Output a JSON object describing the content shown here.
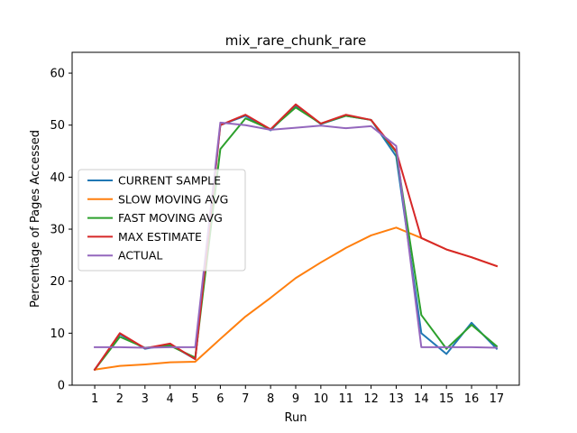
{
  "chart_data": {
    "type": "line",
    "title": "mix_rare_chunk_rare",
    "xlabel": "Run",
    "ylabel": "Percentage of Pages Accessed",
    "x": [
      1,
      2,
      3,
      4,
      5,
      6,
      7,
      8,
      9,
      10,
      11,
      12,
      13,
      14,
      15,
      16,
      17
    ],
    "xlim": [
      0.1,
      17.9
    ],
    "ylim": [
      0,
      64
    ],
    "yticks": [
      0,
      10,
      20,
      30,
      40,
      50,
      60
    ],
    "grid": false,
    "legend_position": "center-left",
    "series": [
      {
        "name": "CURRENT SAMPLE",
        "color": "#1f77b4",
        "values": [
          3.0,
          9.8,
          7.0,
          7.8,
          5.0,
          50.0,
          51.8,
          49.0,
          53.8,
          50.2,
          51.8,
          51.0,
          44.0,
          10.0,
          6.0,
          12.0,
          7.0
        ]
      },
      {
        "name": "SLOW MOVING AVG",
        "color": "#ff7f0e",
        "values": [
          3.0,
          3.7,
          4.0,
          4.4,
          4.5,
          8.9,
          13.2,
          16.8,
          20.6,
          23.6,
          26.4,
          28.8,
          30.3,
          28.3,
          26.1,
          24.6,
          22.9
        ]
      },
      {
        "name": "FAST MOVING AVG",
        "color": "#2ca02c",
        "values": [
          3.0,
          9.3,
          7.2,
          7.6,
          5.3,
          45.4,
          51.3,
          49.2,
          53.4,
          50.3,
          51.8,
          51.0,
          44.8,
          13.5,
          7.0,
          11.6,
          7.5
        ]
      },
      {
        "name": "MAX ESTIMATE",
        "color": "#d62728",
        "values": [
          3.0,
          10.0,
          7.1,
          8.0,
          5.0,
          50.0,
          52.0,
          49.2,
          54.0,
          50.3,
          52.0,
          51.0,
          45.0,
          28.3,
          26.1,
          24.6,
          22.9
        ]
      },
      {
        "name": "ACTUAL",
        "color": "#9467bd",
        "values": [
          7.3,
          7.3,
          7.2,
          7.3,
          7.3,
          50.5,
          50.0,
          49.1,
          49.5,
          49.9,
          49.4,
          49.8,
          46.0,
          7.3,
          7.3,
          7.3,
          7.2
        ]
      }
    ]
  }
}
